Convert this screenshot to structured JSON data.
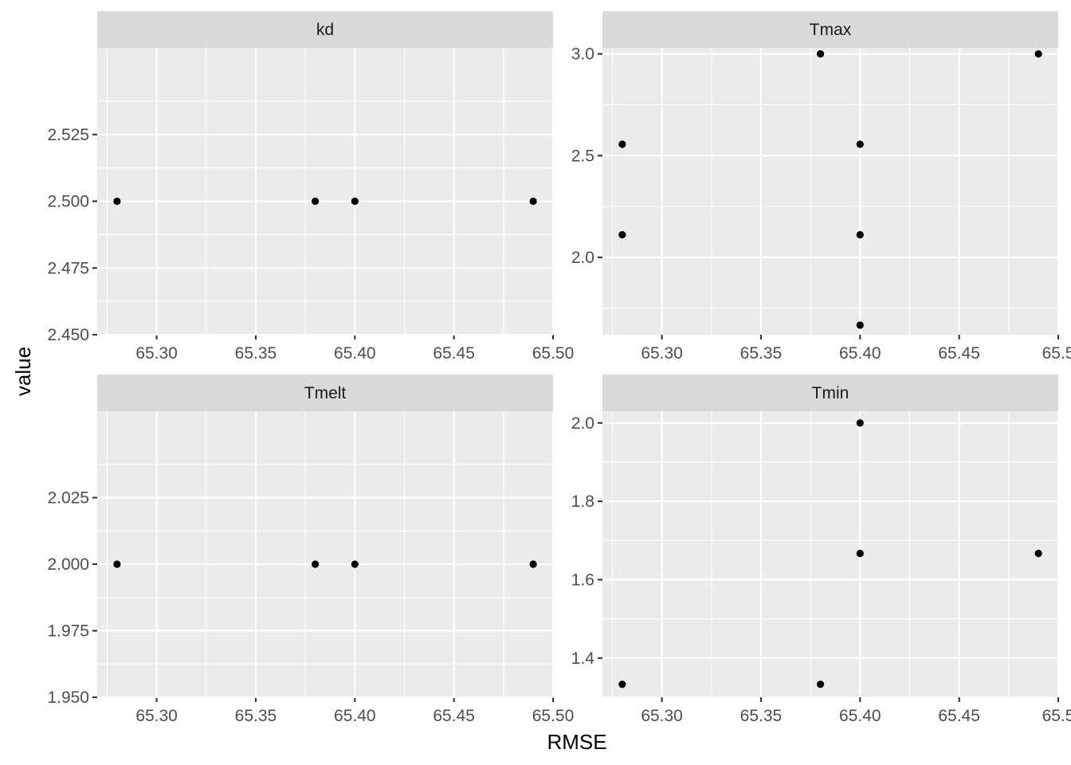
{
  "figure": {
    "xlabel": "RMSE",
    "ylabel": "value"
  },
  "colors": {
    "panel_background": "#ebebeb",
    "strip_background": "#d9d9d9",
    "grid": "#ffffff",
    "points": "#000000",
    "tick_text": "#4d4d4d"
  },
  "chart_data": [
    {
      "type": "scatter",
      "facet": "kd",
      "xlim": [
        65.27,
        65.5
      ],
      "ylim": [
        2.45,
        2.5575
      ],
      "x_ticks": [
        "65.30",
        "65.35",
        "65.40",
        "65.45",
        "65.50"
      ],
      "y_ticks": [
        "2.450",
        "2.475",
        "2.500",
        "2.525"
      ],
      "points": [
        {
          "x": 65.28,
          "y": 2.5
        },
        {
          "x": 65.38,
          "y": 2.5
        },
        {
          "x": 65.4,
          "y": 2.5
        },
        {
          "x": 65.49,
          "y": 2.5
        }
      ]
    },
    {
      "type": "scatter",
      "facet": "Tmax",
      "xlim": [
        65.27,
        65.5
      ],
      "ylim": [
        1.62,
        3.03
      ],
      "x_ticks": [
        "65.30",
        "65.35",
        "65.40",
        "65.45",
        "65.5"
      ],
      "y_ticks": [
        "2.0",
        "2.5",
        "3.0"
      ],
      "points": [
        {
          "x": 65.28,
          "y": 2.556
        },
        {
          "x": 65.28,
          "y": 2.111
        },
        {
          "x": 65.38,
          "y": 3.0
        },
        {
          "x": 65.4,
          "y": 2.556
        },
        {
          "x": 65.4,
          "y": 2.111
        },
        {
          "x": 65.4,
          "y": 1.667
        },
        {
          "x": 65.49,
          "y": 3.0
        }
      ]
    },
    {
      "type": "scatter",
      "facet": "Tmelt",
      "xlim": [
        65.27,
        65.5
      ],
      "ylim": [
        1.95,
        2.0575
      ],
      "x_ticks": [
        "65.30",
        "65.35",
        "65.40",
        "65.45",
        "65.50"
      ],
      "y_ticks": [
        "1.950",
        "1.975",
        "2.000",
        "2.025"
      ],
      "points": [
        {
          "x": 65.28,
          "y": 2.0
        },
        {
          "x": 65.38,
          "y": 2.0
        },
        {
          "x": 65.4,
          "y": 2.0
        },
        {
          "x": 65.49,
          "y": 2.0
        }
      ]
    },
    {
      "type": "scatter",
      "facet": "Tmin",
      "xlim": [
        65.27,
        65.5
      ],
      "ylim": [
        1.3,
        2.03
      ],
      "x_ticks": [
        "65.30",
        "65.35",
        "65.40",
        "65.45",
        "65.5"
      ],
      "y_ticks": [
        "1.4",
        "1.6",
        "1.8",
        "2.0"
      ],
      "points": [
        {
          "x": 65.28,
          "y": 1.333
        },
        {
          "x": 65.38,
          "y": 1.333
        },
        {
          "x": 65.4,
          "y": 2.0
        },
        {
          "x": 65.4,
          "y": 1.667
        },
        {
          "x": 65.49,
          "y": 1.667
        }
      ]
    }
  ]
}
